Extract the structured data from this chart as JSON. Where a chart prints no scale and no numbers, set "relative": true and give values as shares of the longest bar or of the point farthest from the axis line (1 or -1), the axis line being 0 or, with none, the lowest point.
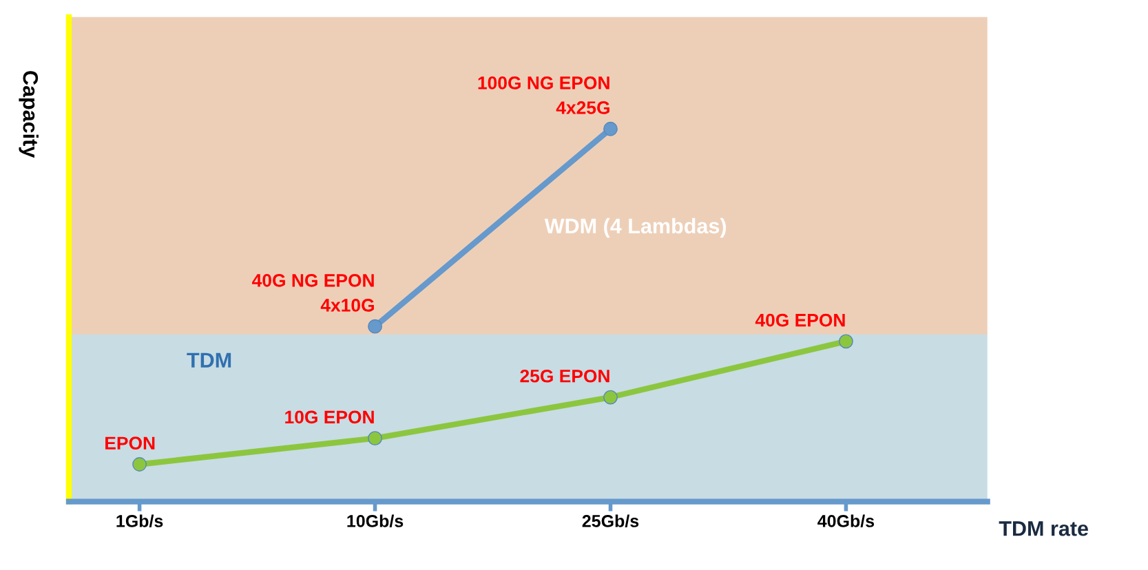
{
  "chart_data": {
    "type": "line",
    "relative": true,
    "xlabel": "TDM rate",
    "ylabel": "Capacity",
    "categories": [
      "1Gb/s",
      "10Gb/s",
      "25Gb/s",
      "40Gb/s"
    ],
    "series": [
      {
        "color": "#8cc63f",
        "values": [
          0.1,
          0.17,
          0.28,
          0.43
        ]
      },
      {
        "color": "#6699cc",
        "values": [
          null,
          0.47,
          1.0,
          null
        ]
      }
    ],
    "bands": [
      {
        "axis": "y",
        "from": 0,
        "to": 0.45,
        "label": "TDM",
        "color": "#c8dce3"
      },
      {
        "axis": "y",
        "from": 0.45,
        "to": 1.3,
        "label": "WDM (4 Lambdas)",
        "color": "#edcfb8"
      }
    ],
    "marker": "circle",
    "grid": false,
    "legend": false,
    "annotations": [
      {
        "text": "EPON",
        "x": "1Gb/s",
        "y": 0.1
      },
      {
        "text": "10G EPON",
        "x": "10Gb/s",
        "y": 0.17
      },
      {
        "text": "25G EPON",
        "x": "25Gb/s",
        "y": 0.28
      },
      {
        "text": "40G EPON",
        "x": "40Gb/s",
        "y": 0.43
      },
      {
        "text": "40G NG EPON\n4x10G",
        "x": "10Gb/s",
        "y": 0.47
      },
      {
        "text": "100G NG EPON\n4x25G",
        "x": "25Gb/s",
        "y": 1.0
      }
    ]
  }
}
